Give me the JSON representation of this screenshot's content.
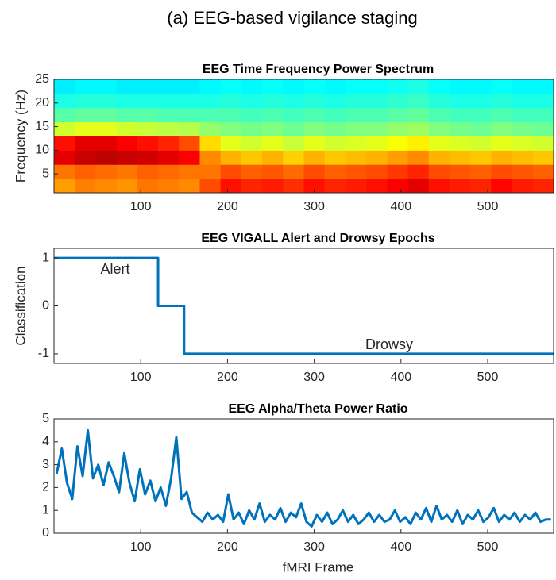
{
  "title": "(a) EEG-based vigilance staging",
  "chart_data": [
    {
      "type": "heatmap",
      "title": "EEG Time Frequency Power Spectrum",
      "ylabel": "Frequency (Hz)",
      "xlim": [
        0,
        576
      ],
      "ylim": [
        1,
        25
      ],
      "xticks": [
        100,
        200,
        300,
        400,
        500
      ],
      "yticks": [
        5,
        10,
        15,
        20,
        25
      ],
      "colormap": "jet",
      "x_bins": [
        0,
        24,
        48,
        72,
        96,
        120,
        144,
        168,
        192,
        216,
        240,
        264,
        288,
        312,
        336,
        360,
        384,
        408,
        432,
        456,
        480,
        504,
        528,
        552,
        576
      ],
      "y_bins": [
        1,
        4,
        7,
        10,
        13,
        16,
        19,
        22,
        25
      ],
      "z": [
        [
          0.72,
          0.75,
          0.74,
          0.73,
          0.76,
          0.75,
          0.74,
          0.8,
          0.86,
          0.84,
          0.85,
          0.83,
          0.86,
          0.84,
          0.85,
          0.86,
          0.88,
          0.9,
          0.86,
          0.85,
          0.84,
          0.87,
          0.85,
          0.84
        ],
        [
          0.76,
          0.78,
          0.77,
          0.76,
          0.78,
          0.77,
          0.76,
          0.76,
          0.8,
          0.78,
          0.79,
          0.77,
          0.8,
          0.78,
          0.79,
          0.8,
          0.82,
          0.84,
          0.8,
          0.79,
          0.78,
          0.8,
          0.79,
          0.78
        ],
        [
          0.9,
          0.93,
          0.94,
          0.93,
          0.92,
          0.9,
          0.88,
          0.74,
          0.7,
          0.68,
          0.7,
          0.67,
          0.7,
          0.68,
          0.69,
          0.7,
          0.72,
          0.74,
          0.7,
          0.69,
          0.68,
          0.7,
          0.69,
          0.68
        ],
        [
          0.86,
          0.9,
          0.9,
          0.88,
          0.86,
          0.84,
          0.8,
          0.66,
          0.6,
          0.58,
          0.6,
          0.57,
          0.6,
          0.58,
          0.59,
          0.6,
          0.62,
          0.64,
          0.6,
          0.59,
          0.58,
          0.6,
          0.59,
          0.58
        ],
        [
          0.58,
          0.6,
          0.6,
          0.58,
          0.57,
          0.56,
          0.55,
          0.52,
          0.5,
          0.49,
          0.5,
          0.48,
          0.5,
          0.49,
          0.5,
          0.5,
          0.52,
          0.53,
          0.5,
          0.49,
          0.48,
          0.5,
          0.49,
          0.48
        ],
        [
          0.46,
          0.47,
          0.47,
          0.46,
          0.46,
          0.45,
          0.45,
          0.45,
          0.45,
          0.44,
          0.45,
          0.44,
          0.45,
          0.44,
          0.45,
          0.45,
          0.46,
          0.47,
          0.45,
          0.44,
          0.44,
          0.45,
          0.44,
          0.44
        ],
        [
          0.4,
          0.41,
          0.41,
          0.4,
          0.4,
          0.4,
          0.4,
          0.4,
          0.41,
          0.4,
          0.41,
          0.4,
          0.41,
          0.4,
          0.41,
          0.41,
          0.42,
          0.43,
          0.41,
          0.4,
          0.4,
          0.41,
          0.4,
          0.4
        ],
        [
          0.36,
          0.37,
          0.37,
          0.36,
          0.36,
          0.36,
          0.36,
          0.37,
          0.38,
          0.37,
          0.38,
          0.37,
          0.38,
          0.37,
          0.38,
          0.38,
          0.39,
          0.4,
          0.38,
          0.37,
          0.37,
          0.38,
          0.37,
          0.37
        ]
      ]
    },
    {
      "type": "line",
      "title": "EEG VIGALL Alert and Drowsy Epochs",
      "ylabel": "Classification",
      "xlim": [
        0,
        576
      ],
      "ylim": [
        -1.2,
        1.2
      ],
      "xticks": [
        100,
        200,
        300,
        400,
        500
      ],
      "yticks": [
        -1,
        0,
        1
      ],
      "color": "#0072bd",
      "x": [
        0,
        120,
        120,
        150,
        150,
        576
      ],
      "values": [
        1,
        1,
        0,
        0,
        -1,
        -1
      ],
      "annotations": [
        "Alert",
        "Drowsy"
      ]
    },
    {
      "type": "line",
      "title": "EEG Alpha/Theta Power Ratio",
      "xlabel": "fMRI Frame",
      "xlim": [
        0,
        576
      ],
      "ylim": [
        0,
        5
      ],
      "xticks": [
        100,
        200,
        300,
        400,
        500
      ],
      "yticks": [
        0,
        1,
        2,
        3,
        4,
        5
      ],
      "color": "#0072bd",
      "x": [
        3,
        9,
        15,
        21,
        27,
        33,
        39,
        45,
        51,
        57,
        63,
        69,
        75,
        81,
        87,
        93,
        99,
        105,
        111,
        117,
        123,
        129,
        135,
        141,
        147,
        153,
        159,
        165,
        171,
        177,
        183,
        189,
        195,
        201,
        207,
        213,
        219,
        225,
        231,
        237,
        243,
        249,
        255,
        261,
        267,
        273,
        279,
        285,
        291,
        297,
        303,
        309,
        315,
        321,
        327,
        333,
        339,
        345,
        351,
        357,
        363,
        369,
        375,
        381,
        387,
        393,
        399,
        405,
        411,
        417,
        423,
        429,
        435,
        441,
        447,
        453,
        459,
        465,
        471,
        477,
        483,
        489,
        495,
        501,
        507,
        513,
        519,
        525,
        531,
        537,
        543,
        549,
        555,
        561,
        567,
        573
      ],
      "values": [
        2.6,
        3.7,
        2.2,
        1.5,
        3.8,
        2.5,
        4.5,
        2.4,
        3.0,
        2.1,
        3.1,
        2.5,
        1.8,
        3.5,
        2.2,
        1.4,
        2.8,
        1.7,
        2.3,
        1.4,
        2.0,
        1.2,
        2.4,
        4.2,
        1.5,
        1.8,
        0.9,
        0.7,
        0.5,
        0.9,
        0.6,
        0.8,
        0.5,
        1.7,
        0.6,
        0.9,
        0.4,
        1.0,
        0.6,
        1.3,
        0.5,
        0.8,
        0.6,
        1.1,
        0.5,
        0.9,
        0.7,
        1.3,
        0.5,
        0.3,
        0.8,
        0.5,
        0.9,
        0.4,
        0.6,
        1.0,
        0.5,
        0.8,
        0.4,
        0.6,
        0.9,
        0.5,
        0.8,
        0.5,
        0.6,
        1.0,
        0.5,
        0.7,
        0.4,
        0.9,
        0.6,
        1.1,
        0.5,
        1.2,
        0.6,
        0.8,
        0.5,
        1.0,
        0.4,
        0.8,
        0.6,
        1.0,
        0.5,
        0.7,
        1.1,
        0.5,
        0.8,
        0.6,
        0.9,
        0.5,
        0.8,
        0.6,
        0.9,
        0.5,
        0.6,
        0.6
      ]
    }
  ]
}
